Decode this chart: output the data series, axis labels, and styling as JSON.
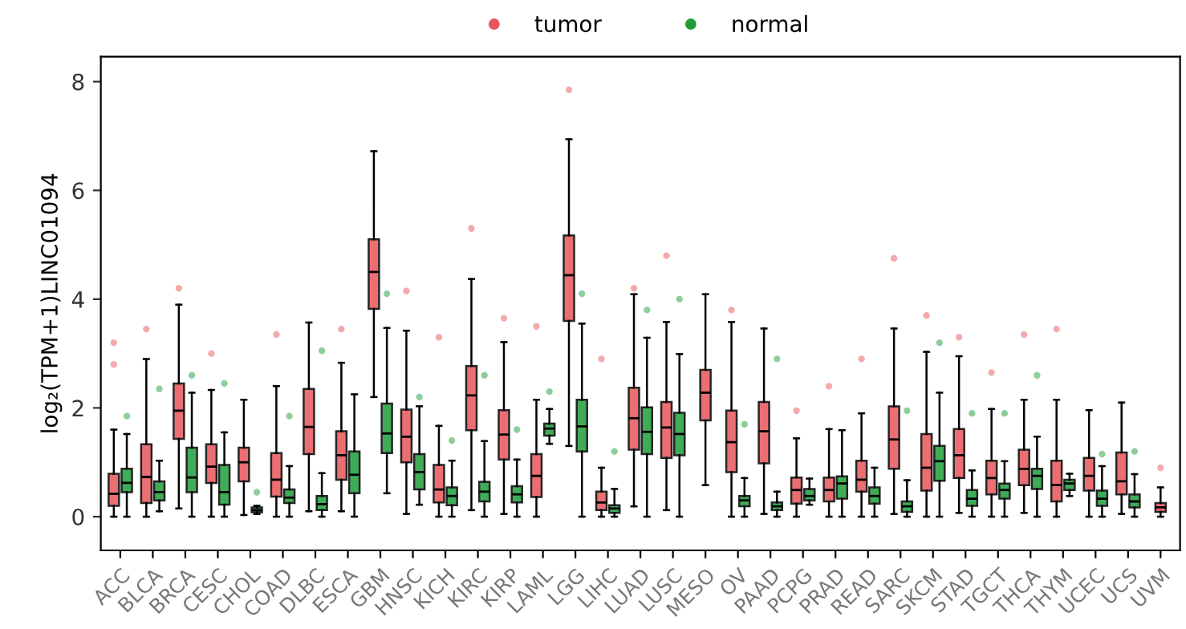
{
  "chart_data": {
    "type": "box",
    "ylabel": "log₂(TPM+1)LINC01094",
    "ylim": [
      -0.62,
      8.46
    ],
    "yticks": [
      0,
      2,
      4,
      6,
      8
    ],
    "grid": false,
    "legend": "top",
    "marker": "circle",
    "categories": [
      "ACC",
      "BLCA",
      "BRCA",
      "CESC",
      "CHOL",
      "COAD",
      "DLBC",
      "ESCA",
      "GBM",
      "HNSC",
      "KICH",
      "KIRC",
      "KIRP",
      "LAML",
      "LGG",
      "LIHC",
      "LUAD",
      "LUSC",
      "MESO",
      "OV",
      "PAAD",
      "PCPG",
      "PRAD",
      "READ",
      "SARC",
      "SKCM",
      "STAD",
      "TGCT",
      "THCA",
      "THYM",
      "UCEC",
      "UCS",
      "UVM"
    ],
    "series": [
      {
        "name": "tumor",
        "color": "#e8555a",
        "boxes": [
          {
            "low": 0,
            "q1": 0.2,
            "median": 0.42,
            "q3": 0.79,
            "high": 1.6,
            "outliers": [
              3.2,
              2.8
            ]
          },
          {
            "low": 0,
            "q1": 0.25,
            "median": 0.73,
            "q3": 1.33,
            "high": 2.9,
            "outliers": [
              3.45
            ]
          },
          {
            "low": 0.15,
            "q1": 1.43,
            "median": 1.95,
            "q3": 2.45,
            "high": 3.9,
            "outliers": [
              4.2
            ]
          },
          {
            "low": 0,
            "q1": 0.62,
            "median": 0.92,
            "q3": 1.33,
            "high": 2.33,
            "outliers": [
              3.0
            ]
          },
          {
            "low": 0.03,
            "q1": 0.65,
            "median": 1.0,
            "q3": 1.27,
            "high": 2.15
          },
          {
            "low": 0,
            "q1": 0.37,
            "median": 0.68,
            "q3": 1.17,
            "high": 2.4,
            "outliers": [
              3.35
            ]
          },
          {
            "low": 0.1,
            "q1": 1.15,
            "median": 1.65,
            "q3": 2.35,
            "high": 3.57
          },
          {
            "low": 0.1,
            "q1": 0.68,
            "median": 1.13,
            "q3": 1.57,
            "high": 2.83,
            "outliers": [
              3.45
            ]
          },
          {
            "low": 2.2,
            "q1": 3.82,
            "median": 4.5,
            "q3": 5.1,
            "high": 6.72
          },
          {
            "low": 0.05,
            "q1": 1.0,
            "median": 1.47,
            "q3": 1.97,
            "high": 3.42,
            "outliers": [
              4.15
            ]
          },
          {
            "low": 0,
            "q1": 0.26,
            "median": 0.5,
            "q3": 0.95,
            "high": 1.67,
            "outliers": [
              3.3
            ]
          },
          {
            "low": 0.12,
            "q1": 1.59,
            "median": 2.23,
            "q3": 2.77,
            "high": 4.37,
            "outliers": [
              5.3
            ]
          },
          {
            "low": 0.05,
            "q1": 1.05,
            "median": 1.51,
            "q3": 1.96,
            "high": 3.21,
            "outliers": [
              3.65
            ]
          },
          {
            "low": 0,
            "q1": 0.36,
            "median": 0.75,
            "q3": 1.15,
            "high": 2.15,
            "outliers": [
              3.5
            ]
          },
          {
            "low": 1.3,
            "q1": 3.6,
            "median": 4.44,
            "q3": 5.17,
            "high": 6.94,
            "outliers": [
              7.85
            ]
          },
          {
            "low": 0,
            "q1": 0.12,
            "median": 0.26,
            "q3": 0.46,
            "high": 0.9,
            "outliers": [
              2.9
            ]
          },
          {
            "low": 0.19,
            "q1": 1.23,
            "median": 1.81,
            "q3": 2.37,
            "high": 4.09,
            "outliers": [
              4.2
            ]
          },
          {
            "low": 0.12,
            "q1": 1.08,
            "median": 1.64,
            "q3": 2.11,
            "high": 3.58,
            "outliers": [
              4.8
            ]
          },
          {
            "low": 0.58,
            "q1": 1.77,
            "median": 2.28,
            "q3": 2.7,
            "high": 4.09
          },
          {
            "low": 0,
            "q1": 0.82,
            "median": 1.37,
            "q3": 1.95,
            "high": 3.58,
            "outliers": [
              3.8
            ]
          },
          {
            "low": 0.05,
            "q1": 0.98,
            "median": 1.57,
            "q3": 2.11,
            "high": 3.46
          },
          {
            "low": 0,
            "q1": 0.24,
            "median": 0.49,
            "q3": 0.72,
            "high": 1.44,
            "outliers": [
              1.95
            ]
          },
          {
            "low": 0,
            "q1": 0.28,
            "median": 0.49,
            "q3": 0.72,
            "high": 1.61,
            "outliers": [
              2.4
            ]
          },
          {
            "low": 0,
            "q1": 0.46,
            "median": 0.68,
            "q3": 1.03,
            "high": 1.9,
            "outliers": [
              2.9
            ]
          },
          {
            "low": 0.05,
            "q1": 0.88,
            "median": 1.42,
            "q3": 2.03,
            "high": 3.46,
            "outliers": [
              4.75
            ]
          },
          {
            "low": 0,
            "q1": 0.48,
            "median": 0.9,
            "q3": 1.52,
            "high": 3.03,
            "outliers": [
              3.7
            ]
          },
          {
            "low": 0.07,
            "q1": 0.71,
            "median": 1.13,
            "q3": 1.61,
            "high": 2.95,
            "outliers": [
              3.3
            ]
          },
          {
            "low": 0,
            "q1": 0.41,
            "median": 0.71,
            "q3": 1.03,
            "high": 1.98,
            "outliers": [
              2.65
            ]
          },
          {
            "low": 0.07,
            "q1": 0.58,
            "median": 0.88,
            "q3": 1.23,
            "high": 2.15,
            "outliers": [
              3.35
            ]
          },
          {
            "low": 0,
            "q1": 0.28,
            "median": 0.58,
            "q3": 1.03,
            "high": 2.15,
            "outliers": [
              3.45
            ]
          },
          {
            "low": 0,
            "q1": 0.48,
            "median": 0.75,
            "q3": 1.08,
            "high": 1.96
          },
          {
            "low": 0.05,
            "q1": 0.41,
            "median": 0.65,
            "q3": 1.18,
            "high": 2.1
          },
          {
            "low": 0,
            "q1": 0.09,
            "median": 0.17,
            "q3": 0.25,
            "high": 0.54,
            "outliers": [
              0.9
            ]
          }
        ]
      },
      {
        "name": "normal",
        "color": "#1e9e3a",
        "boxes": [
          {
            "low": 0,
            "q1": 0.45,
            "median": 0.62,
            "q3": 0.88,
            "high": 1.52,
            "outliers": [
              1.85
            ]
          },
          {
            "low": 0.1,
            "q1": 0.3,
            "median": 0.45,
            "q3": 0.65,
            "high": 1.03,
            "outliers": [
              2.35
            ]
          },
          {
            "low": 0,
            "q1": 0.45,
            "median": 0.72,
            "q3": 1.27,
            "high": 2.28,
            "outliers": [
              2.6
            ]
          },
          {
            "low": 0,
            "q1": 0.22,
            "median": 0.45,
            "q3": 0.95,
            "high": 1.55,
            "outliers": [
              2.45
            ]
          },
          {
            "low": 0.05,
            "q1": 0.08,
            "median": 0.12,
            "q3": 0.17,
            "high": 0.2,
            "outliers": [
              0.45
            ]
          },
          {
            "low": 0,
            "q1": 0.25,
            "median": 0.35,
            "q3": 0.5,
            "high": 0.93,
            "outliers": [
              1.85
            ]
          },
          {
            "low": 0,
            "q1": 0.12,
            "median": 0.23,
            "q3": 0.38,
            "high": 0.8,
            "outliers": [
              3.05
            ]
          },
          {
            "low": 0,
            "q1": 0.43,
            "median": 0.77,
            "q3": 1.2,
            "high": 2.25
          },
          {
            "low": 0.43,
            "q1": 1.17,
            "median": 1.53,
            "q3": 2.08,
            "high": 3.47,
            "outliers": [
              4.1
            ]
          },
          {
            "low": 0.22,
            "q1": 0.5,
            "median": 0.82,
            "q3": 1.15,
            "high": 2.03,
            "outliers": [
              2.2
            ]
          },
          {
            "low": 0,
            "q1": 0.21,
            "median": 0.38,
            "q3": 0.54,
            "high": 1.03,
            "outliers": [
              1.4
            ]
          },
          {
            "low": 0,
            "q1": 0.28,
            "median": 0.46,
            "q3": 0.64,
            "high": 1.39,
            "outliers": [
              2.6
            ]
          },
          {
            "low": 0,
            "q1": 0.26,
            "median": 0.41,
            "q3": 0.56,
            "high": 1.05,
            "outliers": [
              1.6
            ]
          },
          {
            "low": 1.34,
            "q1": 1.49,
            "median": 1.62,
            "q3": 1.71,
            "high": 1.98,
            "outliers": [
              2.3
            ]
          },
          {
            "low": 0,
            "q1": 1.2,
            "median": 1.66,
            "q3": 2.15,
            "high": 3.55,
            "outliers": [
              4.1
            ]
          },
          {
            "low": 0,
            "q1": 0.07,
            "median": 0.15,
            "q3": 0.21,
            "high": 0.51,
            "outliers": [
              1.2
            ]
          },
          {
            "low": 0,
            "q1": 1.15,
            "median": 1.56,
            "q3": 2.01,
            "high": 3.29,
            "outliers": [
              3.8
            ]
          },
          {
            "low": 0,
            "q1": 1.13,
            "median": 1.52,
            "q3": 1.91,
            "high": 2.99,
            "outliers": [
              4.0
            ]
          },
          null,
          {
            "low": 0,
            "q1": 0.19,
            "median": 0.3,
            "q3": 0.38,
            "high": 0.71,
            "outliers": [
              1.7
            ]
          },
          {
            "low": 0,
            "q1": 0.12,
            "median": 0.19,
            "q3": 0.26,
            "high": 0.46,
            "outliers": [
              2.9
            ]
          },
          {
            "low": 0.22,
            "q1": 0.3,
            "median": 0.38,
            "q3": 0.51,
            "high": 0.7
          },
          {
            "low": 0,
            "q1": 0.33,
            "median": 0.61,
            "q3": 0.74,
            "high": 1.59
          },
          {
            "low": 0,
            "q1": 0.24,
            "median": 0.38,
            "q3": 0.54,
            "high": 0.9
          },
          {
            "low": 0,
            "q1": 0.09,
            "median": 0.19,
            "q3": 0.28,
            "high": 0.67,
            "outliers": [
              1.95
            ]
          },
          {
            "low": 0,
            "q1": 0.66,
            "median": 1.02,
            "q3": 1.3,
            "high": 2.28,
            "outliers": [
              3.2
            ]
          },
          {
            "low": 0,
            "q1": 0.2,
            "median": 0.33,
            "q3": 0.49,
            "high": 0.85,
            "outliers": [
              1.9
            ]
          },
          {
            "low": 0,
            "q1": 0.33,
            "median": 0.49,
            "q3": 0.61,
            "high": 1.02,
            "outliers": [
              1.9
            ]
          },
          {
            "low": 0,
            "q1": 0.51,
            "median": 0.75,
            "q3": 0.88,
            "high": 1.47,
            "outliers": [
              2.6
            ]
          },
          {
            "low": 0.38,
            "q1": 0.49,
            "median": 0.61,
            "q3": 0.68,
            "high": 0.79
          },
          {
            "low": 0,
            "q1": 0.2,
            "median": 0.33,
            "q3": 0.48,
            "high": 0.93,
            "outliers": [
              1.15
            ]
          },
          {
            "low": 0,
            "q1": 0.17,
            "median": 0.28,
            "q3": 0.41,
            "high": 0.78,
            "outliers": [
              1.2
            ]
          },
          null
        ]
      }
    ]
  }
}
